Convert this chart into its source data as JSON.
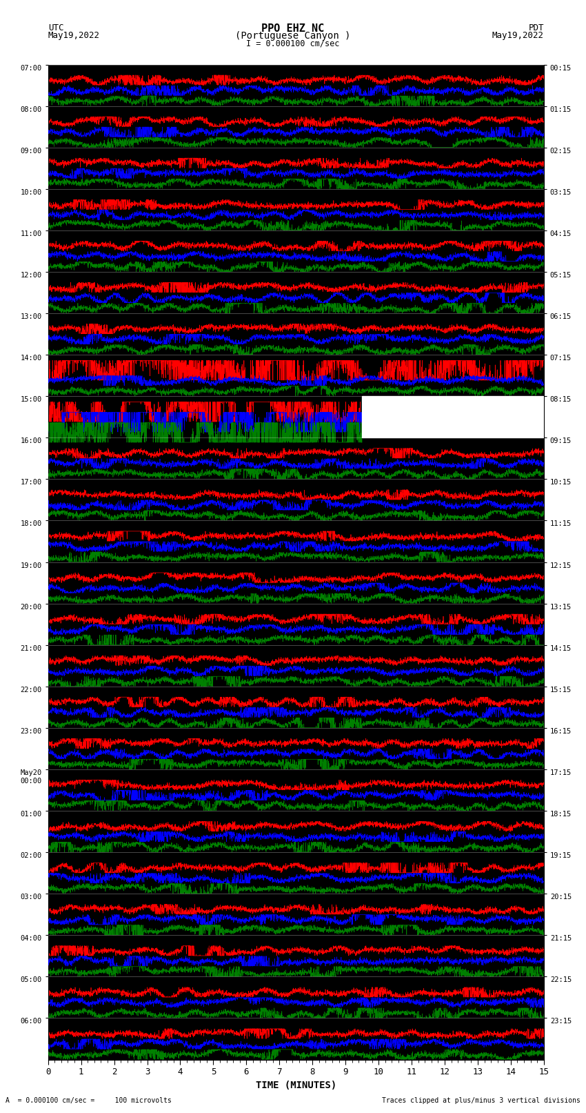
{
  "title_line1": "PPO EHZ NC",
  "title_line2": "(Portuguese Canyon )",
  "title_line3": "I = 0.000100 cm/sec",
  "left_header_line1": "UTC",
  "left_header_line2": "May19,2022",
  "right_header_line1": "PDT",
  "right_header_line2": "May19,2022",
  "xlabel": "TIME (MINUTES)",
  "footer_left": "A  = 0.000100 cm/sec =     100 microvolts",
  "footer_right": "Traces clipped at plus/minus 3 vertical divisions",
  "left_times_utc": [
    "07:00",
    "08:00",
    "09:00",
    "10:00",
    "11:00",
    "12:00",
    "13:00",
    "14:00",
    "15:00",
    "16:00",
    "17:00",
    "18:00",
    "19:00",
    "20:00",
    "21:00",
    "22:00",
    "23:00",
    "May20\n00:00",
    "01:00",
    "02:00",
    "03:00",
    "04:00",
    "05:00",
    "06:00"
  ],
  "right_times_pdt": [
    "00:15",
    "01:15",
    "02:15",
    "03:15",
    "04:15",
    "05:15",
    "06:15",
    "07:15",
    "08:15",
    "09:15",
    "10:15",
    "11:15",
    "12:15",
    "13:15",
    "14:15",
    "15:15",
    "16:15",
    "17:15",
    "18:15",
    "19:15",
    "20:15",
    "21:15",
    "22:15",
    "23:15"
  ],
  "xticks": [
    0,
    1,
    2,
    3,
    4,
    5,
    6,
    7,
    8,
    9,
    10,
    11,
    12,
    13,
    14,
    15
  ],
  "num_rows": 24,
  "traces_per_row": 4,
  "trace_colors": [
    "black",
    "red",
    "blue",
    "green"
  ],
  "bg_color": "white",
  "fig_width": 8.5,
  "fig_height": 16.13
}
